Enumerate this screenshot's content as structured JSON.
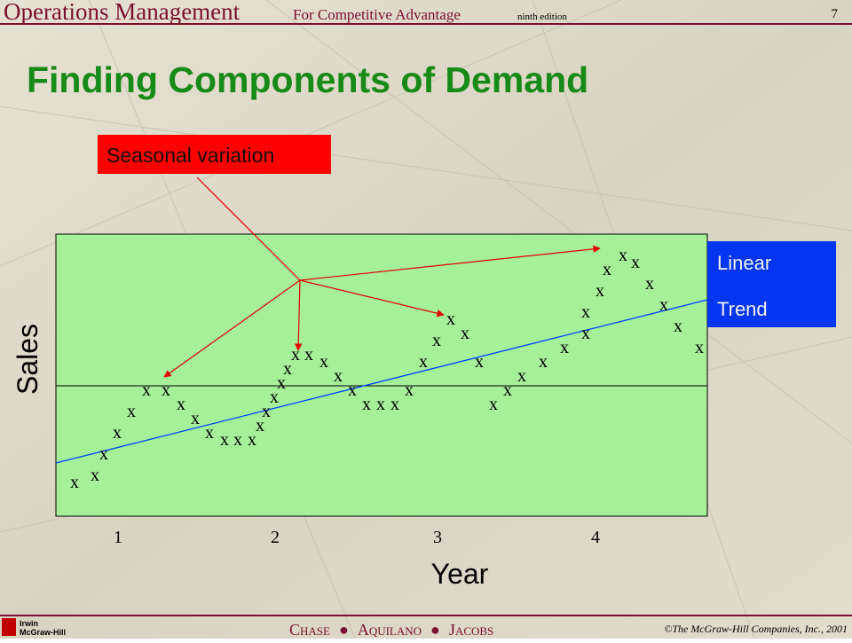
{
  "header": {
    "title": "Operations Management",
    "subtitle": "For Competitive Advantage",
    "edition": "ninth edition",
    "page": "7"
  },
  "slide_title": "Finding Components of Demand",
  "callout": "Seasonal variation",
  "trend_label": [
    "Linear",
    "Trend"
  ],
  "y_label": "Sales",
  "x_label": "Year",
  "x_ticks": [
    "1",
    "2",
    "3",
    "4"
  ],
  "marker": "x",
  "footer": {
    "logo": [
      "Irwin",
      "McGraw-Hill"
    ],
    "authors": [
      "Chase",
      "Aquilano",
      "Jacobs"
    ],
    "copyright": "©The McGraw-Hill Companies, Inc., 2001"
  }
}
